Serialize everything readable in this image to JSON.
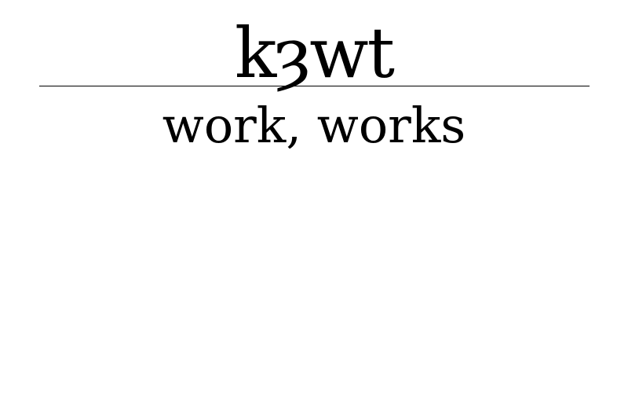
{
  "entry": {
    "transliteration": "kȝwt",
    "translation": "work, works"
  }
}
